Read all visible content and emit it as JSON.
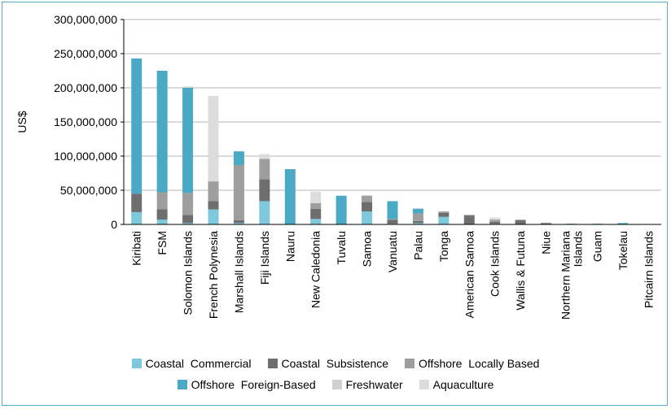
{
  "chart_data": {
    "type": "bar",
    "stacked": true,
    "ylabel": "US$",
    "xlabel": "",
    "title": "",
    "ylim": [
      0,
      300000000
    ],
    "y_ticks": [
      0,
      50000000,
      100000000,
      150000000,
      200000000,
      250000000,
      300000000
    ],
    "y_tick_labels": [
      "0",
      "50,000,000",
      "100,000,000",
      "150,000,000",
      "200,000,000",
      "250,000,000",
      "300,000,000"
    ],
    "grid": "horizontal",
    "legend_position": "bottom",
    "categories": [
      "Kiribati",
      "FSM",
      "Solomon Islands",
      "French Polynesia",
      "Marshall Islands",
      "Fiji Islands",
      "Nauru",
      "New Caledonia",
      "Tuvalu",
      "Samoa",
      "Vanuatu",
      "Palau",
      "Tonga",
      "American Samoa",
      "Cook Islands",
      "Wallis & Futuna",
      "Niue",
      "Northern Mariana Islands",
      "Guam",
      "Tokelau",
      "Pitcairn Islands"
    ],
    "category_label_lines": [
      [
        "Kiribati"
      ],
      [
        "FSM"
      ],
      [
        "Solomon Islands"
      ],
      [
        "French Polynesia"
      ],
      [
        "Marshall Islands"
      ],
      [
        "Fiji Islands"
      ],
      [
        "Nauru"
      ],
      [
        "New Caledonia"
      ],
      [
        "Tuvalu"
      ],
      [
        "Samoa"
      ],
      [
        "Vanuatu"
      ],
      [
        "Palau"
      ],
      [
        "Tonga"
      ],
      [
        "American Samoa"
      ],
      [
        "Cook Islands"
      ],
      [
        "Wallis & Futuna"
      ],
      [
        "Niue"
      ],
      [
        "Northern Mariana",
        "Islands"
      ],
      [
        "Guam"
      ],
      [
        "Tokelau"
      ],
      [
        "Pitcairn Islands"
      ]
    ],
    "series": [
      {
        "name": "Coastal  Commercial",
        "color": "#7ec8dc",
        "values": [
          18000000,
          7000000,
          2000000,
          22000000,
          2000000,
          34000000,
          0,
          8000000,
          0,
          19000000,
          1000000,
          2000000,
          11000000,
          0,
          1000000,
          0,
          0,
          0,
          0,
          0,
          0
        ]
      },
      {
        "name": "Coastal  Subsistence",
        "color": "#6e6e6e",
        "values": [
          27000000,
          15000000,
          12000000,
          12000000,
          4000000,
          32000000,
          0,
          15000000,
          0,
          14000000,
          6000000,
          3000000,
          6000000,
          13000000,
          3000000,
          6000000,
          2000000,
          0,
          0,
          0,
          0
        ]
      },
      {
        "name": "Offshore  Locally Based",
        "color": "#9e9e9e",
        "values": [
          0,
          25000000,
          32000000,
          29000000,
          81000000,
          30000000,
          0,
          8000000,
          0,
          9000000,
          1000000,
          11000000,
          2000000,
          1000000,
          3000000,
          1000000,
          0,
          0,
          0,
          0,
          0
        ]
      },
      {
        "name": "Offshore  Foreign-Based",
        "color": "#4aa9c4",
        "values": [
          198000000,
          178000000,
          154000000,
          0,
          20000000,
          0,
          81000000,
          0,
          42000000,
          0,
          26000000,
          7000000,
          0,
          0,
          0,
          0,
          0,
          1000000,
          1000000,
          2000000,
          0
        ]
      },
      {
        "name": "Freshwater",
        "color": "#cfcfcf",
        "values": [
          0,
          0,
          1000000,
          0,
          0,
          0,
          0,
          1000000,
          0,
          0,
          0,
          0,
          0,
          0,
          0,
          0,
          0,
          0,
          0,
          0,
          0
        ]
      },
      {
        "name": "Aquaculture",
        "color": "#dcdcdc",
        "values": [
          0,
          0,
          1000000,
          125000000,
          0,
          7000000,
          0,
          16000000,
          0,
          1000000,
          0,
          1000000,
          0,
          0,
          3000000,
          0,
          1000000,
          0,
          0,
          0,
          0
        ]
      }
    ],
    "legend_rows": [
      [
        0,
        1,
        2
      ],
      [
        3,
        4,
        5
      ]
    ]
  }
}
